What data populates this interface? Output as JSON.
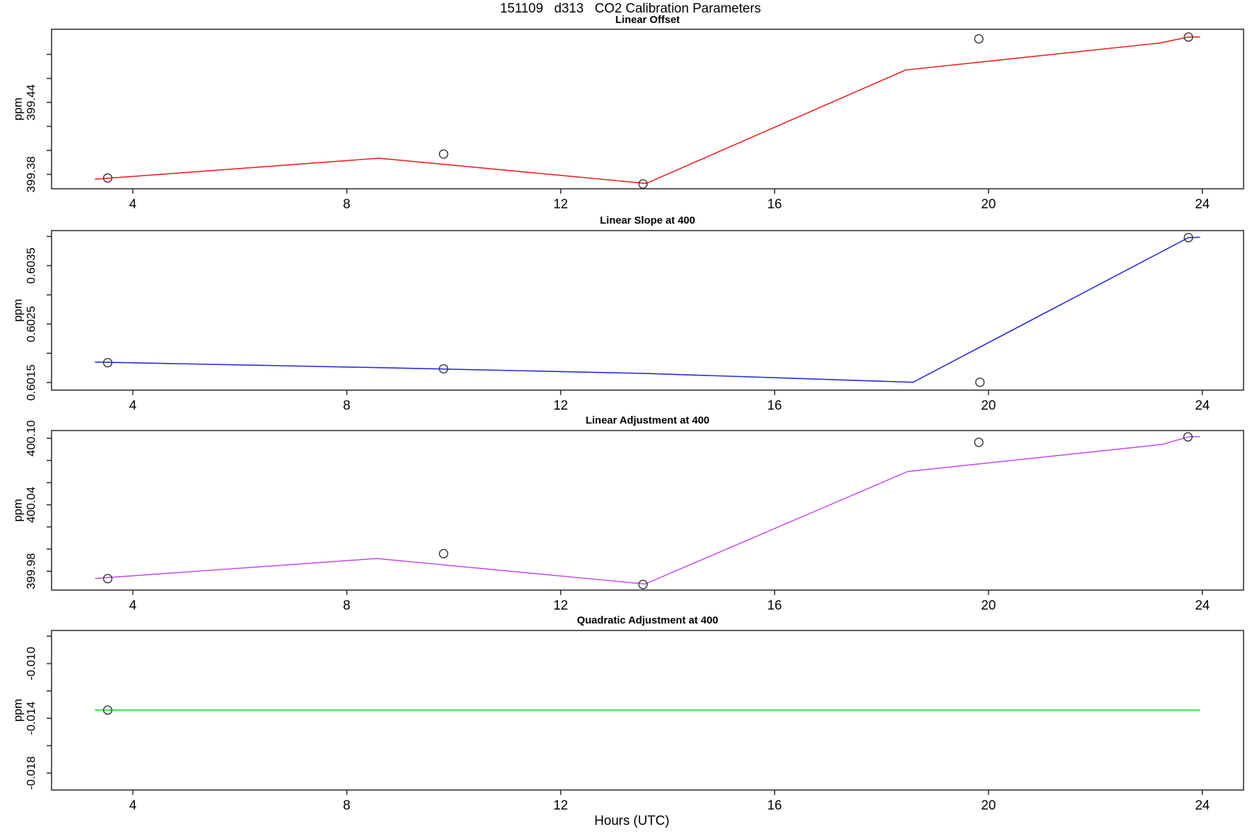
{
  "figure": {
    "title": "151109   d313   CO2 Calibration Parameters",
    "xlabel": "Hours (UTC)",
    "background": "#ffffff",
    "axis_color": "#333333",
    "point_color": "#333333"
  },
  "chart_data": [
    {
      "type": "line",
      "title": "Linear Offset",
      "ylabel": "ppm",
      "color": "#f02222",
      "legend": "none",
      "grid": false,
      "xlim": [
        2.48,
        24.77
      ],
      "ylim": [
        399.368,
        399.501
      ],
      "x_ticks": [
        4,
        8,
        12,
        16,
        20,
        24
      ],
      "y_ticks": [
        399.38,
        399.4,
        399.42,
        399.44,
        399.46,
        399.48
      ],
      "y_tick_labels": [
        "399.38",
        "",
        "",
        "399.44",
        "",
        ""
      ],
      "line": {
        "x": [
          3.3,
          8.6,
          13.6,
          18.45,
          23.2,
          23.74,
          23.95
        ],
        "y": [
          399.376,
          399.3935,
          399.3725,
          399.467,
          399.4895,
          399.4945,
          399.4945
        ]
      },
      "points": {
        "x": [
          3.53,
          9.81,
          13.54,
          19.82,
          23.74
        ],
        "y": [
          399.377,
          399.397,
          399.372,
          399.493,
          399.4945
        ]
      }
    },
    {
      "type": "line",
      "title": "Linear Slope at 400",
      "ylabel": "ppm",
      "color": "#2929d6",
      "legend": "none",
      "grid": false,
      "xlim": [
        2.48,
        24.77
      ],
      "ylim": [
        0.60137,
        0.6041
      ],
      "x_ticks": [
        4,
        8,
        12,
        16,
        20,
        24
      ],
      "y_ticks": [
        0.6015,
        0.602,
        0.6025,
        0.603,
        0.6035,
        0.604
      ],
      "y_tick_labels": [
        "0.6015",
        "",
        "0.6025",
        "",
        "0.6035",
        ""
      ],
      "line": {
        "x": [
          3.3,
          8.6,
          13.6,
          18.59,
          23.25,
          23.74,
          23.95
        ],
        "y": [
          0.60185,
          0.601755,
          0.601655,
          0.601505,
          0.603745,
          0.60398,
          0.603985
        ]
      },
      "points": {
        "x": [
          3.53,
          9.81,
          19.84,
          23.74
        ],
        "y": [
          0.60184,
          0.601735,
          0.601505,
          0.60398
        ]
      }
    },
    {
      "type": "line",
      "title": "Linear Adjustment at 400",
      "ylabel": "ppm",
      "color": "#c353ee",
      "legend": "none",
      "grid": false,
      "xlim": [
        2.48,
        24.77
      ],
      "ylim": [
        399.963,
        400.107
      ],
      "x_ticks": [
        4,
        8,
        12,
        16,
        20,
        24
      ],
      "y_ticks": [
        399.98,
        400.0,
        400.02,
        400.04,
        400.06,
        400.08,
        400.1
      ],
      "y_tick_labels": [
        "399.98",
        "",
        "",
        "400.04",
        "",
        "",
        "400.10"
      ],
      "line": {
        "x": [
          3.3,
          8.56,
          13.58,
          18.49,
          23.25,
          23.74,
          23.95
        ],
        "y": [
          399.9735,
          399.9915,
          399.9685,
          400.07,
          400.0945,
          400.1013,
          400.1015
        ]
      },
      "points": {
        "x": [
          3.53,
          9.81,
          13.54,
          19.82,
          23.73
        ],
        "y": [
          399.9733,
          399.9959,
          399.968,
          400.0964,
          400.1013
        ]
      }
    },
    {
      "type": "line",
      "title": "Quadratic Adjustment at 400",
      "ylabel": "ppm",
      "color": "#10dd20",
      "legend": "none",
      "grid": false,
      "xlim": [
        2.48,
        24.77
      ],
      "ylim": [
        -0.01924,
        -0.00758
      ],
      "x_ticks": [
        4,
        8,
        12,
        16,
        20,
        24
      ],
      "y_ticks": [
        -0.018,
        -0.016,
        -0.014,
        -0.012,
        -0.01,
        -0.008
      ],
      "y_tick_labels": [
        "-0.018",
        "",
        "-0.014",
        "",
        "-0.010",
        ""
      ],
      "line": {
        "x": [
          3.3,
          23.95
        ],
        "y": [
          -0.0134,
          -0.0134
        ]
      },
      "points": {
        "x": [
          3.53
        ],
        "y": [
          -0.0134
        ]
      }
    }
  ]
}
